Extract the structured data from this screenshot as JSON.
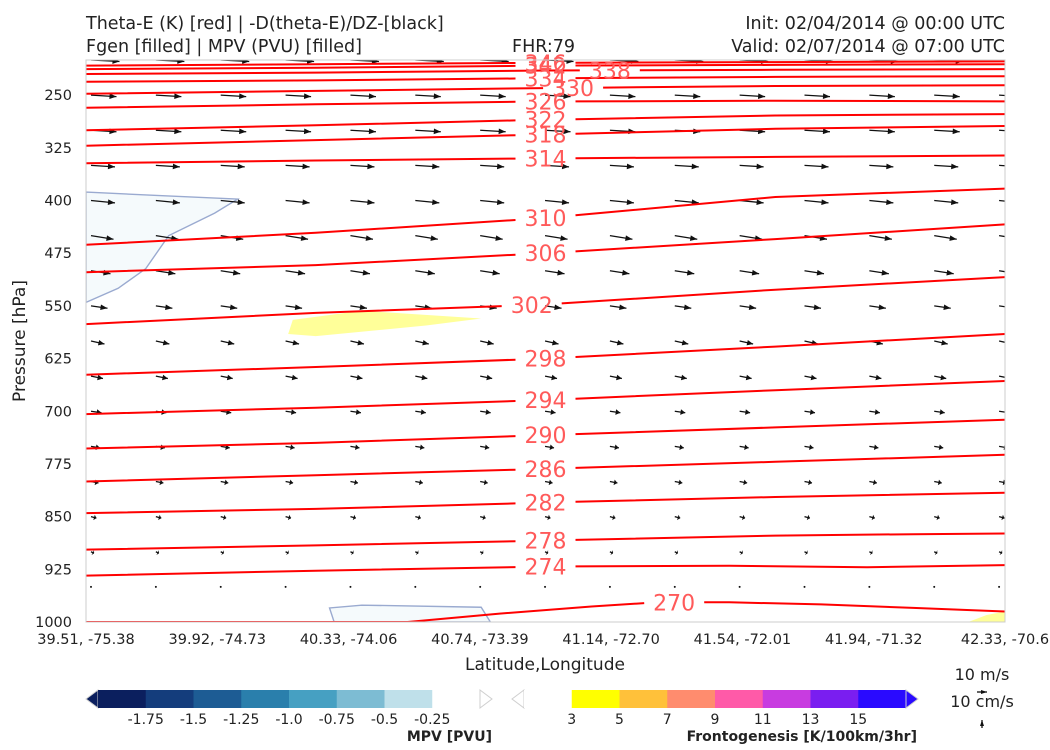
{
  "header": {
    "title_left_1": "Theta-E (K) [red] | -D(theta-E)/DZ-[black]",
    "title_left_2": "Fgen [filled] | MPV (PVU) [filled]",
    "fhr": "FHR:79",
    "init": "Init: 02/04/2014 @ 00:00 UTC",
    "valid": "Valid: 02/07/2014 @ 07:00 UTC"
  },
  "colors": {
    "theta_e": "#ff0000",
    "contour_label": "#ff5a5a",
    "vectors": "#111111",
    "mpv_outline": "#9aaad0",
    "mpv_fill": "#f5fafc",
    "fgen_fill": "#ffff99"
  },
  "chart_data": {
    "type": "cross-section",
    "xlabel": "Latitude,Longitude",
    "ylabel": "Pressure [hPa]",
    "x_ticks": [
      "39.51, -75.38",
      "39.92, -74.73",
      "40.33, -74.06",
      "40.74, -73.39",
      "41.14, -72.70",
      "41.54, -72.01",
      "41.94, -71.32",
      "42.33, -70.6"
    ],
    "y_ticks": [
      250,
      325,
      400,
      475,
      550,
      625,
      700,
      775,
      850,
      925,
      1000
    ],
    "ylim": [
      1000,
      200
    ],
    "grid": false,
    "theta_e_contours": [
      {
        "level": 270,
        "label": "270",
        "points": [
          [
            0,
            1000
          ],
          [
            0.35,
            1000
          ],
          [
            0.45,
            988
          ],
          [
            0.55,
            978
          ],
          [
            0.62,
            972
          ],
          [
            0.7,
            972
          ],
          [
            0.8,
            975
          ],
          [
            0.9,
            980
          ],
          [
            1,
            985
          ]
        ]
      },
      {
        "level": 274,
        "label": "274",
        "points": [
          [
            0,
            934
          ],
          [
            0.25,
            927
          ],
          [
            0.5,
            921
          ],
          [
            0.7,
            920
          ],
          [
            0.85,
            922
          ],
          [
            1,
            919
          ]
        ]
      },
      {
        "level": 278,
        "label": "278",
        "points": [
          [
            0,
            897
          ],
          [
            0.25,
            891
          ],
          [
            0.5,
            884
          ],
          [
            0.75,
            877
          ],
          [
            0.9,
            875
          ],
          [
            1,
            874
          ]
        ]
      },
      {
        "level": 282,
        "label": "282",
        "points": [
          [
            0,
            845
          ],
          [
            0.25,
            839
          ],
          [
            0.5,
            830
          ],
          [
            0.75,
            822
          ],
          [
            1,
            816
          ]
        ]
      },
      {
        "level": 286,
        "label": "286",
        "points": [
          [
            0,
            800
          ],
          [
            0.25,
            791
          ],
          [
            0.5,
            782
          ],
          [
            0.75,
            772
          ],
          [
            1,
            762
          ]
        ]
      },
      {
        "level": 290,
        "label": "290",
        "points": [
          [
            0,
            753
          ],
          [
            0.25,
            745
          ],
          [
            0.5,
            734
          ],
          [
            0.75,
            723
          ],
          [
            1,
            712
          ]
        ]
      },
      {
        "level": 294,
        "label": "294",
        "points": [
          [
            0,
            704
          ],
          [
            0.25,
            695
          ],
          [
            0.5,
            684
          ],
          [
            0.75,
            670
          ],
          [
            1,
            657
          ]
        ]
      },
      {
        "level": 298,
        "label": "298",
        "points": [
          [
            0,
            648
          ],
          [
            0.25,
            637
          ],
          [
            0.5,
            625
          ],
          [
            0.75,
            608
          ],
          [
            1,
            590
          ]
        ]
      },
      {
        "level": 302,
        "label": "302",
        "points": [
          [
            0,
            576
          ],
          [
            0.25,
            560
          ],
          [
            0.5,
            548
          ],
          [
            0.75,
            527
          ],
          [
            1,
            509
          ]
        ]
      },
      {
        "level": 306,
        "label": "306",
        "points": [
          [
            0,
            502
          ],
          [
            0.25,
            492
          ],
          [
            0.5,
            475
          ],
          [
            0.75,
            455
          ],
          [
            1,
            434
          ]
        ]
      },
      {
        "level": 310,
        "label": "310",
        "points": [
          [
            0,
            463
          ],
          [
            0.25,
            446
          ],
          [
            0.5,
            425
          ],
          [
            0.75,
            395
          ],
          [
            1,
            383
          ]
        ]
      },
      {
        "level": 314,
        "label": "314",
        "points": [
          [
            0,
            347
          ],
          [
            0.25,
            343
          ],
          [
            0.5,
            340
          ],
          [
            0.75,
            338
          ],
          [
            1,
            336
          ]
        ]
      },
      {
        "level": 318,
        "label": "318",
        "points": [
          [
            0,
            322
          ],
          [
            0.25,
            314
          ],
          [
            0.5,
            306
          ],
          [
            0.75,
            298
          ],
          [
            1,
            294
          ]
        ]
      },
      {
        "level": 322,
        "label": "322",
        "points": [
          [
            0,
            300
          ],
          [
            0.25,
            293
          ],
          [
            0.5,
            285
          ],
          [
            0.75,
            279
          ],
          [
            1,
            277
          ]
        ]
      },
      {
        "level": 326,
        "label": "326",
        "points": [
          [
            0,
            268
          ],
          [
            0.25,
            263
          ],
          [
            0.5,
            259
          ],
          [
            0.75,
            258
          ],
          [
            1,
            259
          ]
        ]
      },
      {
        "level": 330,
        "label": "330",
        "points": [
          [
            0,
            248
          ],
          [
            0.25,
            244
          ],
          [
            0.5,
            240
          ],
          [
            0.75,
            237
          ],
          [
            1,
            236
          ]
        ]
      },
      {
        "level": 334,
        "label": "334",
        "points": [
          [
            0,
            231
          ],
          [
            0.25,
            229
          ],
          [
            0.5,
            226
          ],
          [
            0.75,
            224
          ],
          [
            1,
            223
          ]
        ]
      },
      {
        "level": 338,
        "label": "338",
        "points": [
          [
            0,
            220
          ],
          [
            0.25,
            218
          ],
          [
            0.5,
            215
          ],
          [
            0.75,
            214
          ],
          [
            1,
            213
          ]
        ]
      },
      {
        "level": 342,
        "label": "342",
        "points": [
          [
            0,
            213
          ],
          [
            0.25,
            211
          ],
          [
            0.5,
            208
          ],
          [
            0.75,
            207
          ],
          [
            1,
            206
          ]
        ]
      },
      {
        "level": 346,
        "label": "346",
        "points": [
          [
            0,
            208
          ],
          [
            0.25,
            206
          ],
          [
            0.5,
            204
          ],
          [
            0.75,
            203
          ],
          [
            1,
            202
          ]
        ]
      }
    ],
    "mpv_regions": [
      {
        "points": [
          [
            0,
            388
          ],
          [
            0.08,
            393
          ],
          [
            0.165,
            398
          ],
          [
            0.14,
            418
          ],
          [
            0.09,
            450
          ],
          [
            0.065,
            497
          ],
          [
            0.035,
            525
          ],
          [
            0,
            545
          ]
        ]
      },
      {
        "points": [
          [
            0.27,
            1000
          ],
          [
            0.265,
            980
          ],
          [
            0.3,
            976
          ],
          [
            0.43,
            979
          ],
          [
            0.44,
            1000
          ]
        ]
      }
    ],
    "fgen_regions": [
      {
        "points": [
          [
            0.22,
            590
          ],
          [
            0.225,
            570
          ],
          [
            0.3,
            557
          ],
          [
            0.43,
            568
          ],
          [
            0.37,
            578
          ],
          [
            0.25,
            593
          ]
        ]
      },
      {
        "points": [
          [
            0.96,
            1000
          ],
          [
            0.98,
            990
          ],
          [
            1,
            985
          ],
          [
            1,
            1000
          ]
        ]
      }
    ],
    "vector_rows": [
      {
        "p": 200,
        "len": 0.95,
        "dy": 0.05
      },
      {
        "p": 250,
        "len": 0.85,
        "dy": 0.05
      },
      {
        "p": 300,
        "len": 0.85,
        "dy": 0.05
      },
      {
        "p": 350,
        "len": 0.8,
        "dy": 0.05
      },
      {
        "p": 400,
        "len": 0.8,
        "dy": 0.08
      },
      {
        "p": 450,
        "len": 0.75,
        "dy": 0.12
      },
      {
        "p": 500,
        "len": 0.65,
        "dy": 0.1
      },
      {
        "p": 550,
        "len": 0.55,
        "dy": 0.08
      },
      {
        "p": 600,
        "len": 0.45,
        "dy": 0.1
      },
      {
        "p": 650,
        "len": 0.4,
        "dy": 0.08
      },
      {
        "p": 700,
        "len": 0.35,
        "dy": 0.05
      },
      {
        "p": 750,
        "len": 0.3,
        "dy": 0.05
      },
      {
        "p": 800,
        "len": 0.25,
        "dy": 0.05
      },
      {
        "p": 850,
        "len": 0.18,
        "dy": 0.05
      },
      {
        "p": 900,
        "len": 0.1,
        "dy": 0.05
      },
      {
        "p": 950,
        "len": 0.03,
        "dy": 0.0
      }
    ]
  },
  "colorbars": {
    "mpv": {
      "title": "MPV [PVU]",
      "colors": [
        "#0b1f5e",
        "#143d7c",
        "#1d5c94",
        "#2a7fac",
        "#46a0c2",
        "#7dbcd3",
        "#bfe0ea",
        "#ffffff"
      ],
      "ticks": [
        "-1.75",
        "-1.5",
        "-1.25",
        "-1.0",
        "-0.75",
        "-0.5",
        "-0.25"
      ]
    },
    "fgen": {
      "title": "Frontogenesis [K/100km/3hr]",
      "colors": [
        "#ffffff",
        "#ffff00",
        "#ffc13a",
        "#ff8c6e",
        "#ff5aa8",
        "#c83ce0",
        "#7a1ef0",
        "#2a0aff"
      ],
      "ticks": [
        "3",
        "5",
        "7",
        "9",
        "11",
        "13",
        "15"
      ]
    }
  },
  "vector_key": {
    "label_1": "10 m/s",
    "label_2": "10 cm/s"
  }
}
